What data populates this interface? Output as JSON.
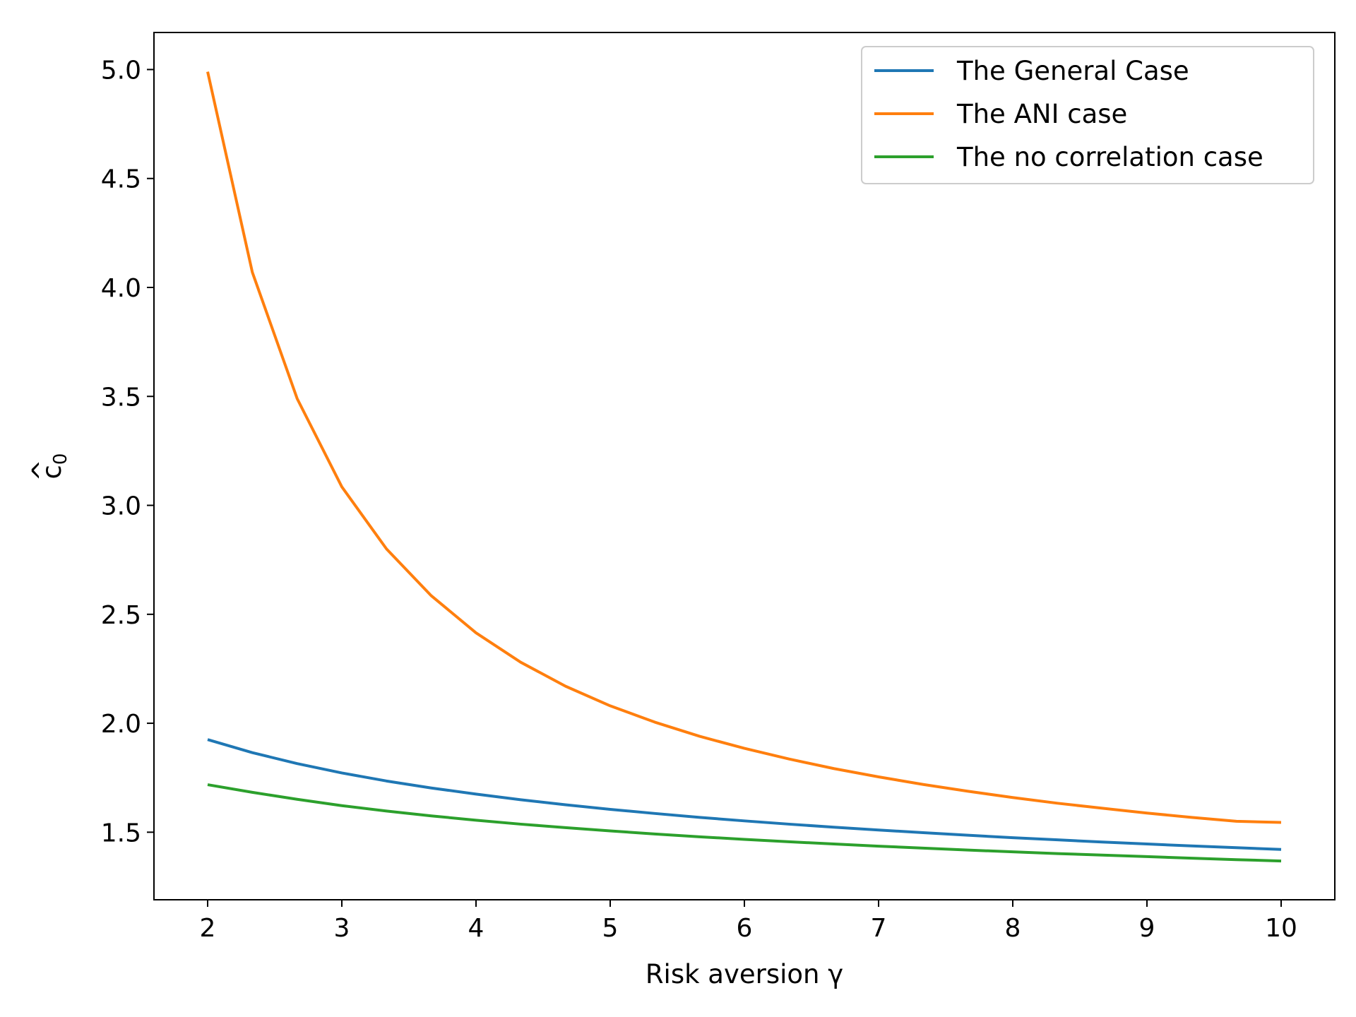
{
  "chart_data": {
    "type": "line",
    "xlabel": "Risk aversion γ",
    "ylabel_base": "c",
    "ylabel_hat": "^",
    "ylabel_sub": "0",
    "xlim": [
      1.6,
      10.4
    ],
    "ylim": [
      1.19,
      5.17
    ],
    "xticks": [
      2,
      3,
      4,
      5,
      6,
      7,
      8,
      9,
      10
    ],
    "yticks": [
      1.5,
      2.0,
      2.5,
      3.0,
      3.5,
      4.0,
      4.5,
      5.0
    ],
    "ytick_labels": [
      "1.5",
      "2.0",
      "2.5",
      "3.0",
      "3.5",
      "4.0",
      "4.5",
      "5.0"
    ],
    "grid": false,
    "legend_position": "top-right",
    "x": [
      2.0,
      2.333,
      2.667,
      3.0,
      3.333,
      3.667,
      4.0,
      4.333,
      4.667,
      5.0,
      5.333,
      5.667,
      6.0,
      6.333,
      6.667,
      7.0,
      7.333,
      7.667,
      8.0,
      8.333,
      8.667,
      9.0,
      9.333,
      9.667,
      10.0
    ],
    "series": [
      {
        "name": "The General Case",
        "color": "#1f77b4",
        "values": [
          1.925,
          1.865,
          1.815,
          1.772,
          1.735,
          1.703,
          1.675,
          1.649,
          1.626,
          1.605,
          1.586,
          1.568,
          1.552,
          1.537,
          1.523,
          1.51,
          1.498,
          1.486,
          1.475,
          1.465,
          1.455,
          1.446,
          1.437,
          1.429,
          1.421
        ]
      },
      {
        "name": "The ANI case",
        "color": "#ff7f0e",
        "values": [
          4.99,
          4.07,
          3.49,
          3.085,
          2.8,
          2.585,
          2.415,
          2.28,
          2.17,
          2.08,
          2.005,
          1.94,
          1.885,
          1.836,
          1.792,
          1.754,
          1.719,
          1.688,
          1.659,
          1.633,
          1.61,
          1.588,
          1.568,
          1.55,
          1.545
        ]
      },
      {
        "name": "The no correlation case",
        "color": "#2ca02c",
        "values": [
          1.718,
          1.683,
          1.651,
          1.622,
          1.597,
          1.575,
          1.555,
          1.537,
          1.521,
          1.506,
          1.492,
          1.479,
          1.467,
          1.456,
          1.446,
          1.436,
          1.427,
          1.418,
          1.41,
          1.402,
          1.395,
          1.388,
          1.381,
          1.374,
          1.368
        ]
      }
    ]
  }
}
